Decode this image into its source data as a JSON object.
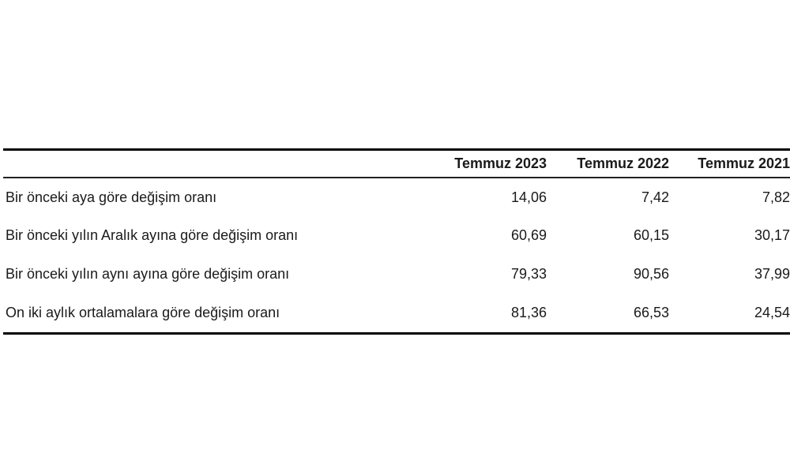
{
  "table": {
    "columns": [
      "",
      "Temmuz 2023",
      "Temmuz 2022",
      "Temmuz 2021"
    ],
    "rows": [
      {
        "label": "Bir önceki aya göre değişim oranı",
        "values": [
          "14,06",
          "7,42",
          "7,82"
        ]
      },
      {
        "label": "Bir önceki yılın Aralık ayına göre değişim oranı",
        "values": [
          "60,69",
          "60,15",
          "30,17"
        ]
      },
      {
        "label": "Bir önceki yılın aynı ayına göre değişim oranı",
        "values": [
          "79,33",
          "90,56",
          "37,99"
        ]
      },
      {
        "label": "On iki aylık ortalamalara göre değişim oranı",
        "values": [
          "81,36",
          "66,53",
          "24,54"
        ]
      }
    ]
  }
}
